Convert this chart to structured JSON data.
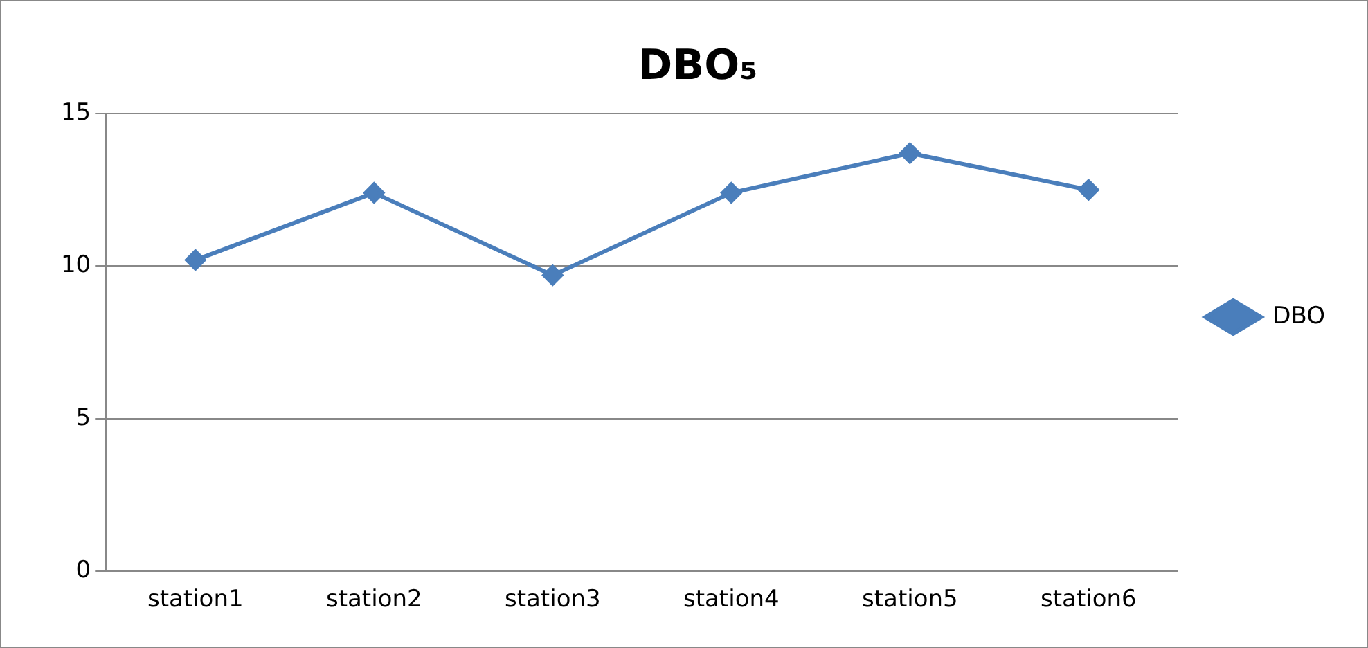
{
  "chart_data": {
    "type": "line",
    "title": "DBO₅",
    "categories": [
      "station1",
      "station2",
      "station3",
      "station4",
      "station5",
      "station6"
    ],
    "series": [
      {
        "name": "DBO",
        "color": "#4a7ebb",
        "values": [
          10.2,
          12.4,
          9.7,
          12.4,
          13.7,
          12.5
        ]
      }
    ],
    "ylim": [
      0,
      15
    ],
    "yticks": [
      0,
      5,
      10,
      15
    ],
    "grid": "y",
    "legend": "right",
    "marker": "diamond"
  }
}
